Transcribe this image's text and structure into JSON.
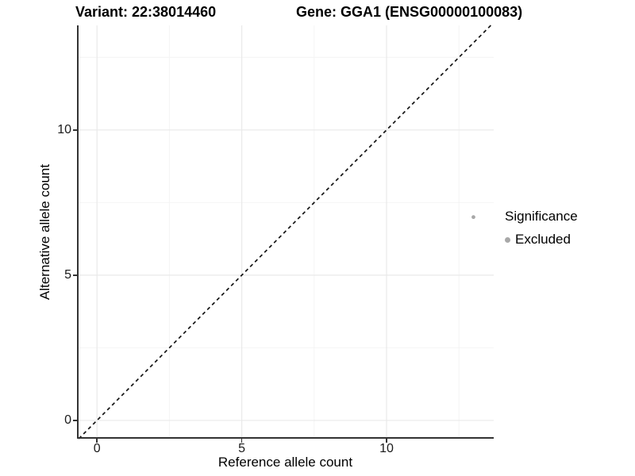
{
  "chart_data": {
    "type": "scatter",
    "title_left": "Variant: 22:38014460",
    "title_right": "Gene: GGA1 (ENSG00000100083)",
    "xlabel": "Reference allele count",
    "ylabel": "Alternative allele count",
    "xlim": [
      -0.69,
      13.7
    ],
    "ylim": [
      -0.63,
      13.6
    ],
    "x_ticks": [
      0,
      5,
      10
    ],
    "y_ticks": [
      0,
      5,
      10
    ],
    "x_minor_ticks": [
      2.5,
      7.5,
      12.5
    ],
    "y_minor_ticks": [
      2.5,
      7.5,
      12.5
    ],
    "grid": "major and minor gridlines, white background",
    "reference_line": {
      "equation": "y = x",
      "line_style": "dashed",
      "color": "#141414"
    },
    "series": [
      {
        "name": "Excluded",
        "color": "#a8a8a8",
        "marker_radius_px": 2.4,
        "points": [
          {
            "x": 13,
            "y": 7
          }
        ]
      }
    ],
    "legend": {
      "position": "right",
      "title": "Significance",
      "items": [
        {
          "label": "Excluded",
          "color": "#a8a8a8"
        }
      ]
    }
  },
  "colors": {
    "background": "#ffffff",
    "axis_line": "#333333",
    "grid_major": "#e9e9e9",
    "grid_minor": "#f4f4f4",
    "tick_text": "#1a1a1a",
    "title_text": "#000000"
  }
}
